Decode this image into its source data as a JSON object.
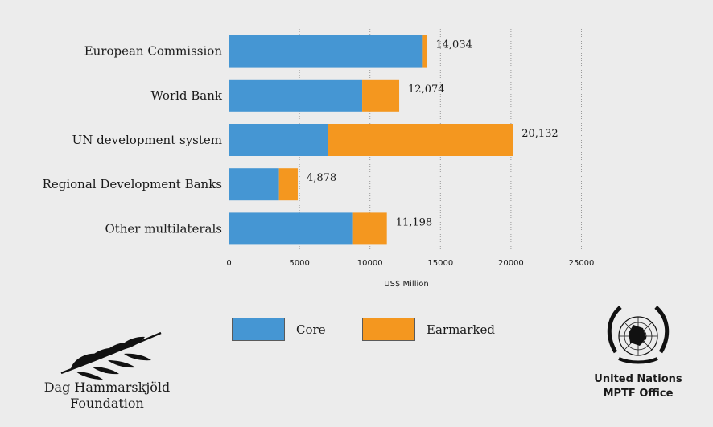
{
  "chart_data": {
    "type": "bar",
    "orientation": "horizontal",
    "stacked": true,
    "categories": [
      "European Commission",
      "World Bank",
      "UN development system",
      "Regional Development Banks",
      "Other multilaterals"
    ],
    "series": [
      {
        "name": "Core",
        "color": "#4596d3",
        "values": [
          13750,
          9450,
          7000,
          3550,
          8800
        ]
      },
      {
        "name": "Earmarked",
        "color": "#f4971f",
        "values": [
          284,
          2624,
          13132,
          1328,
          2398
        ]
      }
    ],
    "totals": [
      "14,034",
      "12,074",
      "20,132",
      "4,878",
      "11,198"
    ],
    "xlabel": "US$ Million",
    "xlim": [
      0,
      25000
    ],
    "xticks": [
      0,
      5000,
      10000,
      15000,
      20000,
      25000
    ],
    "grid": true
  },
  "legend": {
    "core_label": "Core",
    "earmarked_label": "Earmarked"
  },
  "logos": {
    "left_line1": "Dag Hammarskjöld",
    "left_line2": "Foundation",
    "right_line1": "United Nations",
    "right_line2": "MPTF Office"
  }
}
